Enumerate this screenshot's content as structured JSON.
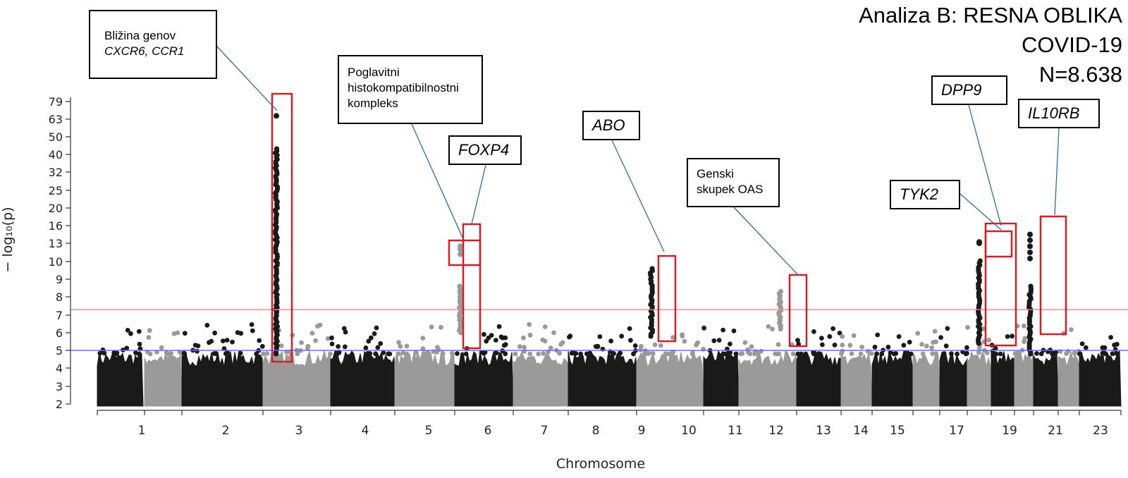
{
  "title": {
    "line1": "Analiza B: RESNA OBLIKA",
    "line2": "COVID-19",
    "line3": "N=8.638"
  },
  "chart_data": {
    "type": "scatter",
    "subtype": "manhattan",
    "xlabel": "Chromosome",
    "ylabel": "− log₁₀(p)",
    "y_tick_labels": [
      "2",
      "3",
      "4",
      "5",
      "6",
      "7",
      "8",
      "9",
      "10",
      "13",
      "16",
      "20",
      "25",
      "32",
      "40",
      "50",
      "63",
      "79"
    ],
    "x_tick_labels": [
      "1",
      "2",
      "3",
      "4",
      "5",
      "6",
      "7",
      "8",
      "9",
      "10",
      "11",
      "12",
      "13",
      "14",
      "15",
      "17",
      "19",
      "21",
      "23"
    ],
    "colors": {
      "dark": "#1a1a1a",
      "light": "#9a9a9a",
      "box": "#e8141c",
      "pointer": "#2b6cb0"
    },
    "thresholds": [
      {
        "value": 5.0,
        "color": "#6b6bff"
      },
      {
        "value": 7.3,
        "color": "#ff8080"
      }
    ],
    "chromosomes": [
      {
        "label": "1",
        "shade": "dark"
      },
      {
        "label": "2",
        "shade": "light"
      },
      {
        "label": "3",
        "shade": "dark"
      },
      {
        "label": "4",
        "shade": "light"
      },
      {
        "label": "5",
        "shade": "dark"
      },
      {
        "label": "6",
        "shade": "light"
      },
      {
        "label": "7",
        "shade": "dark"
      },
      {
        "label": "8",
        "shade": "light"
      },
      {
        "label": "9",
        "shade": "dark"
      },
      {
        "label": "10",
        "shade": "light"
      },
      {
        "label": "11",
        "shade": "dark"
      },
      {
        "label": "12",
        "shade": "light"
      },
      {
        "label": "13",
        "shade": "dark"
      },
      {
        "label": "14",
        "shade": "light"
      },
      {
        "label": "15",
        "shade": "dark"
      },
      {
        "label": "16",
        "shade": "light"
      },
      {
        "label": "17",
        "shade": "dark"
      },
      {
        "label": "18",
        "shade": "light"
      },
      {
        "label": "19",
        "shade": "dark"
      },
      {
        "label": "20",
        "shade": "light"
      },
      {
        "label": "21",
        "shade": "dark"
      },
      {
        "label": "22",
        "shade": "light"
      },
      {
        "label": "23",
        "shade": "dark"
      }
    ],
    "peaks": [
      {
        "chromosome": "3",
        "max": 66,
        "label": "Bližina genov CXCR6, CCR1"
      },
      {
        "chromosome": "6",
        "max": 12.5,
        "label": "Poglavitni histokompatibilnostni kompleks"
      },
      {
        "chromosome": "6",
        "max": 8.6,
        "label": "FOXP4"
      },
      {
        "chromosome": "9",
        "max": 9.7,
        "label": "ABO"
      },
      {
        "chromosome": "12",
        "max": 8.4,
        "label": "Genski skupek OAS"
      },
      {
        "chromosome": "19",
        "max": 13.0,
        "label": "TYK2"
      },
      {
        "chromosome": "19",
        "max": 13.2,
        "label": "DPP9"
      },
      {
        "chromosome": "21",
        "max": 14.5,
        "label": "IL10RB"
      }
    ]
  },
  "annotations": {
    "cxcr6": {
      "line1": "Bližina genov",
      "line2": "CXCR6, CCR1"
    },
    "mhc": {
      "line1": "Poglavitni",
      "line2": "histokompatibilnostni",
      "line3": "kompleks"
    },
    "foxp4": {
      "label": "FOXP4"
    },
    "abo": {
      "label": "ABO"
    },
    "oas": {
      "line1": "Genski",
      "line2": "skupek OAS"
    },
    "tyk2": {
      "label": "TYK2"
    },
    "dpp9": {
      "label": "DPP9"
    },
    "il10rb": {
      "label": "IL10RB"
    }
  }
}
